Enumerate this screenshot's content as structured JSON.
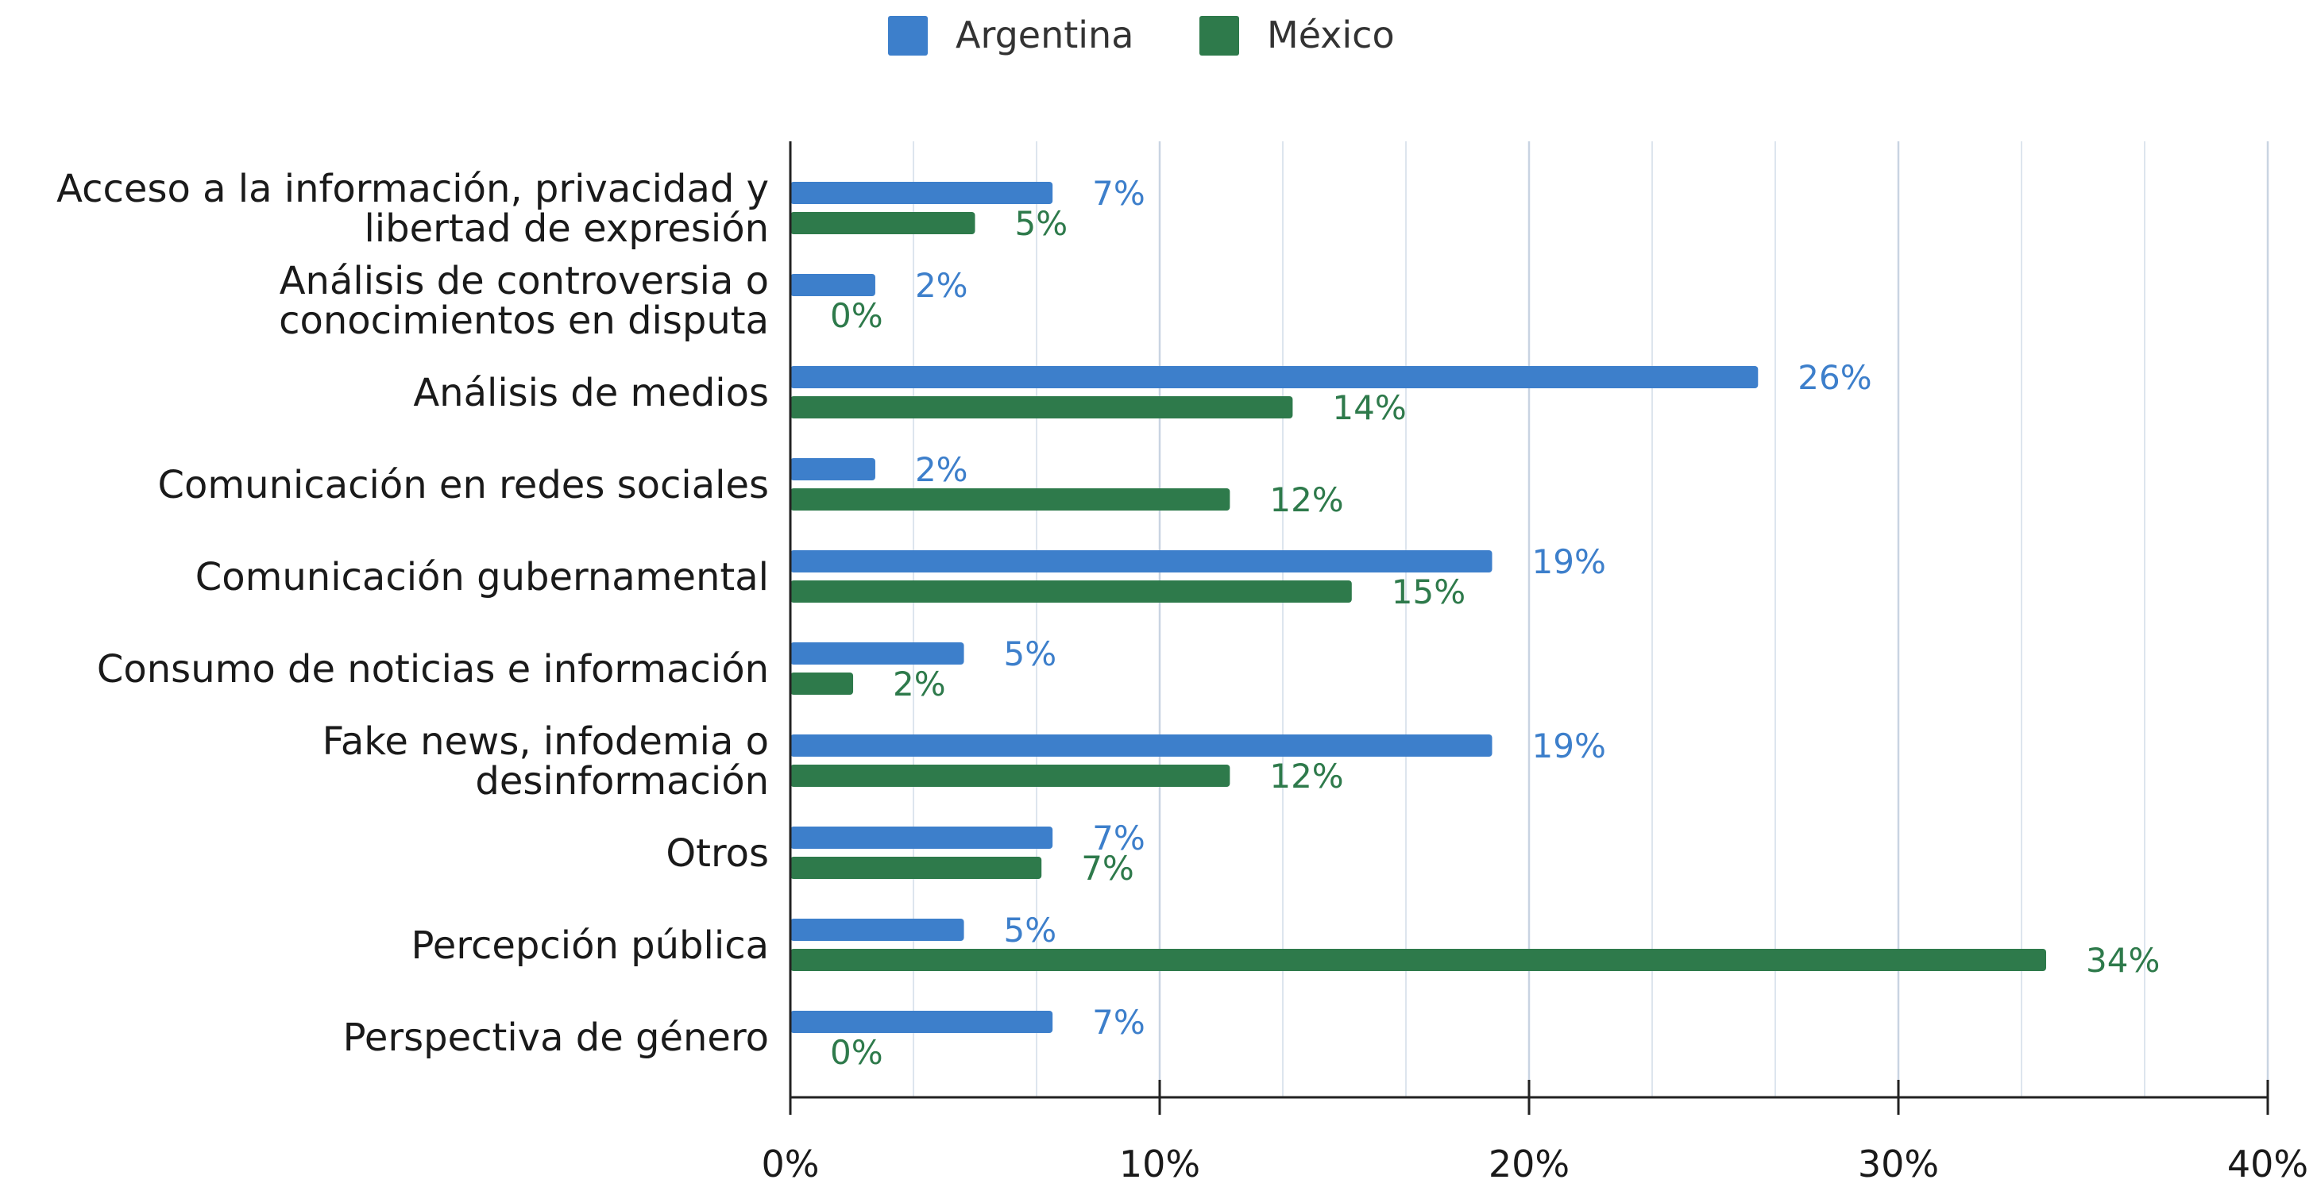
{
  "chart_data": {
    "type": "bar",
    "orientation": "horizontal",
    "categories": [
      [
        "Acceso a la información, privacidad y",
        "libertad de expresión"
      ],
      [
        "Análisis de controversia o",
        "conocimientos en disputa"
      ],
      [
        "Análisis de medios"
      ],
      [
        "Comunicación en redes sociales"
      ],
      [
        "Comunicación gubernamental"
      ],
      [
        "Consumo de noticias e información"
      ],
      [
        "Fake news, infodemia o",
        "desinformación"
      ],
      [
        "Otros"
      ],
      [
        "Percepción pública"
      ],
      [
        "Perspectiva de género"
      ]
    ],
    "series": [
      {
        "name": "Argentina",
        "color": "#3d7fcb",
        "label_color": "#3d7fcb",
        "values": [
          7.1,
          2.3,
          26.2,
          2.3,
          19.0,
          4.7,
          19.0,
          7.1,
          4.7,
          7.1
        ],
        "labels": [
          "7%",
          "2%",
          "26%",
          "2%",
          "19%",
          "5%",
          "19%",
          "7%",
          "5%",
          "7%"
        ]
      },
      {
        "name": "México",
        "color": "#2e7a4b",
        "label_color": "#2e7a4b",
        "values": [
          5.0,
          0.0,
          13.6,
          11.9,
          15.2,
          1.7,
          11.9,
          6.8,
          34.0,
          0.0
        ],
        "labels": [
          "5%",
          "0%",
          "14%",
          "12%",
          "15%",
          "2%",
          "12%",
          "7%",
          "34%",
          "0%"
        ]
      }
    ],
    "xlim": [
      0,
      40
    ],
    "xticks": [
      0,
      10,
      20,
      30,
      40
    ],
    "xtick_labels": [
      "0%",
      "10%",
      "20%",
      "30%",
      "40%"
    ],
    "grid": true,
    "legend": "top-center",
    "title": "",
    "xlabel": "",
    "ylabel": ""
  }
}
